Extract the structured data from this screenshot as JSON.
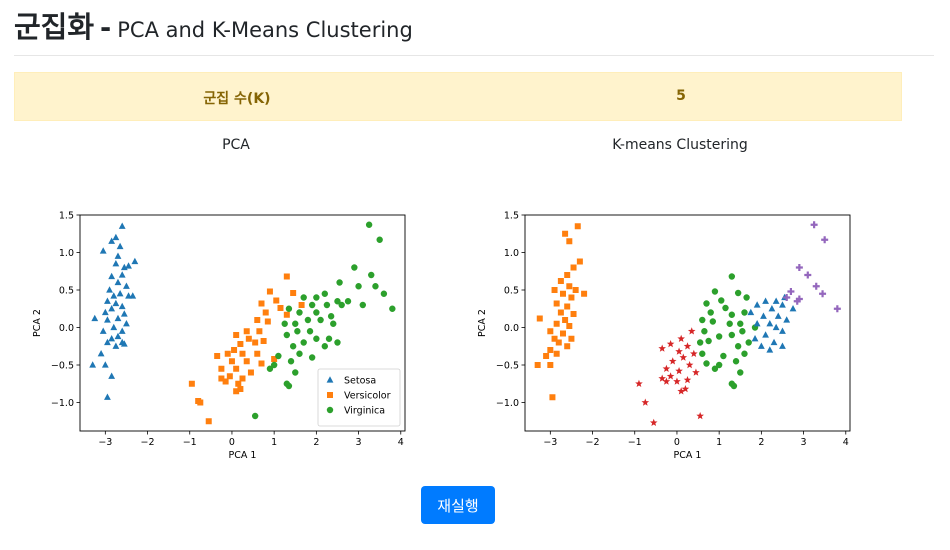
{
  "header": {
    "title_main": "군집화",
    "title_separator": "-",
    "title_sub": "PCA and K-Means Clustering"
  },
  "k_panel": {
    "label": "군집 수(K)",
    "value": "5"
  },
  "plots": {
    "left_title": "PCA",
    "right_title": "K-means Clustering"
  },
  "button": {
    "label": "재실행"
  },
  "chart_data": [
    {
      "type": "scatter",
      "xlabel": "PCA 1",
      "ylabel": "PCA 2",
      "xlim": [
        -3.6,
        4.1
      ],
      "ylim": [
        -1.38,
        1.5
      ],
      "xticks": [
        -3,
        -2,
        -1,
        0,
        1,
        2,
        3,
        4
      ],
      "yticks": [
        -1.0,
        -0.5,
        0.0,
        0.5,
        1.0,
        1.5
      ],
      "legend_position": "lower-right",
      "series": [
        {
          "name": "Setosa",
          "marker": "triangle",
          "color": "#1f77b4",
          "points": [
            [
              -2.6,
              1.35
            ],
            [
              -2.75,
              1.2
            ],
            [
              -2.85,
              1.15
            ],
            [
              -2.65,
              1.08
            ],
            [
              -3.05,
              1.02
            ],
            [
              -2.7,
              0.95
            ],
            [
              -2.3,
              0.88
            ],
            [
              -2.75,
              0.85
            ],
            [
              -2.55,
              0.8
            ],
            [
              -2.45,
              0.82
            ],
            [
              -2.6,
              0.7
            ],
            [
              -2.85,
              0.68
            ],
            [
              -2.7,
              0.6
            ],
            [
              -2.9,
              0.5
            ],
            [
              -2.5,
              0.55
            ],
            [
              -2.65,
              0.45
            ],
            [
              -2.8,
              0.42
            ],
            [
              -2.45,
              0.42
            ],
            [
              -2.35,
              0.42
            ],
            [
              -2.95,
              0.35
            ],
            [
              -2.75,
              0.32
            ],
            [
              -2.6,
              0.28
            ],
            [
              -2.85,
              0.25
            ],
            [
              -3.0,
              0.2
            ],
            [
              -2.55,
              0.18
            ],
            [
              -2.7,
              0.12
            ],
            [
              -2.95,
              0.1
            ],
            [
              -2.5,
              0.05
            ],
            [
              -3.25,
              0.12
            ],
            [
              -2.8,
              0.0
            ],
            [
              -3.05,
              -0.05
            ],
            [
              -2.6,
              -0.05
            ],
            [
              -2.7,
              -0.12
            ],
            [
              -2.85,
              -0.15
            ],
            [
              -2.6,
              -0.2
            ],
            [
              -2.95,
              -0.2
            ],
            [
              -2.75,
              -0.25
            ],
            [
              -2.55,
              -0.22
            ],
            [
              -3.1,
              -0.35
            ],
            [
              -3.0,
              -0.5
            ],
            [
              -3.3,
              -0.5
            ],
            [
              -2.85,
              -0.65
            ],
            [
              -2.95,
              -0.93
            ]
          ]
        },
        {
          "name": "Versicolor",
          "marker": "square",
          "color": "#ff7f0e",
          "points": [
            [
              1.3,
              0.68
            ],
            [
              0.9,
              0.48
            ],
            [
              1.45,
              0.46
            ],
            [
              1.05,
              0.36
            ],
            [
              1.65,
              0.3
            ],
            [
              0.7,
              0.32
            ],
            [
              1.15,
              0.26
            ],
            [
              0.8,
              0.2
            ],
            [
              1.3,
              0.17
            ],
            [
              0.85,
              0.08
            ],
            [
              0.6,
              0.1
            ],
            [
              0.35,
              -0.05
            ],
            [
              0.65,
              -0.05
            ],
            [
              0.1,
              -0.1
            ],
            [
              0.4,
              -0.15
            ],
            [
              0.75,
              -0.18
            ],
            [
              0.2,
              -0.22
            ],
            [
              0.55,
              -0.2
            ],
            [
              0.05,
              -0.3
            ],
            [
              -0.1,
              -0.35
            ],
            [
              0.25,
              -0.35
            ],
            [
              0.6,
              -0.35
            ],
            [
              -0.35,
              -0.38
            ],
            [
              0.0,
              -0.45
            ],
            [
              0.35,
              -0.45
            ],
            [
              0.7,
              -0.48
            ],
            [
              1.0,
              -0.42
            ],
            [
              -0.25,
              -0.55
            ],
            [
              0.1,
              -0.55
            ],
            [
              0.45,
              -0.6
            ],
            [
              -0.05,
              -0.65
            ],
            [
              0.25,
              -0.68
            ],
            [
              -0.25,
              -0.68
            ],
            [
              -0.15,
              -0.72
            ],
            [
              0.15,
              -0.75
            ],
            [
              -0.95,
              -0.75
            ],
            [
              0.2,
              -0.82
            ],
            [
              -0.75,
              -1.0
            ],
            [
              -0.55,
              -1.25
            ],
            [
              0.1,
              -0.85
            ],
            [
              -0.8,
              -0.98
            ]
          ]
        },
        {
          "name": "Virginica",
          "marker": "circle",
          "color": "#2ca02c",
          "points": [
            [
              3.25,
              1.37
            ],
            [
              3.5,
              1.17
            ],
            [
              2.9,
              0.8
            ],
            [
              3.3,
              0.7
            ],
            [
              2.55,
              0.6
            ],
            [
              3.0,
              0.55
            ],
            [
              3.4,
              0.55
            ],
            [
              3.6,
              0.45
            ],
            [
              2.2,
              0.45
            ],
            [
              2.0,
              0.4
            ],
            [
              1.7,
              0.4
            ],
            [
              2.5,
              0.35
            ],
            [
              2.75,
              0.35
            ],
            [
              1.9,
              0.3
            ],
            [
              2.25,
              0.3
            ],
            [
              2.6,
              0.3
            ],
            [
              3.1,
              0.3
            ],
            [
              3.8,
              0.25
            ],
            [
              1.35,
              0.25
            ],
            [
              1.6,
              0.2
            ],
            [
              2.0,
              0.2
            ],
            [
              2.35,
              0.15
            ],
            [
              1.8,
              0.1
            ],
            [
              2.1,
              0.1
            ],
            [
              1.5,
              0.05
            ],
            [
              1.25,
              0.05
            ],
            [
              2.4,
              0.05
            ],
            [
              1.85,
              -0.05
            ],
            [
              1.55,
              -0.05
            ],
            [
              1.3,
              -0.1
            ],
            [
              2.0,
              -0.15
            ],
            [
              2.3,
              -0.15
            ],
            [
              1.7,
              -0.2
            ],
            [
              2.5,
              -0.2
            ],
            [
              1.45,
              -0.25
            ],
            [
              2.2,
              -0.25
            ],
            [
              1.6,
              -0.35
            ],
            [
              1.1,
              -0.38
            ],
            [
              1.9,
              -0.4
            ],
            [
              1.4,
              -0.45
            ],
            [
              1.0,
              -0.5
            ],
            [
              0.9,
              -0.55
            ],
            [
              1.5,
              -0.6
            ],
            [
              1.3,
              -0.75
            ],
            [
              1.35,
              -0.78
            ],
            [
              0.55,
              -1.18
            ]
          ]
        }
      ]
    },
    {
      "type": "scatter",
      "xlabel": "PCA 1",
      "ylabel": "PCA 2",
      "xlim": [
        -3.6,
        4.1
      ],
      "ylim": [
        -1.38,
        1.5
      ],
      "xticks": [
        -3,
        -2,
        -1,
        0,
        1,
        2,
        3,
        4
      ],
      "yticks": [
        -1.0,
        -0.5,
        0.0,
        0.5,
        1.0,
        1.5
      ],
      "series": [
        {
          "marker": "square",
          "color": "#ff7f0e",
          "points": [
            [
              -2.35,
              1.35
            ],
            [
              -2.65,
              1.25
            ],
            [
              -2.55,
              1.15
            ],
            [
              -2.3,
              0.88
            ],
            [
              -2.45,
              0.8
            ],
            [
              -2.6,
              0.7
            ],
            [
              -2.75,
              0.62
            ],
            [
              -2.55,
              0.55
            ],
            [
              -2.4,
              0.5
            ],
            [
              -2.9,
              0.5
            ],
            [
              -2.2,
              0.45
            ],
            [
              -2.7,
              0.45
            ],
            [
              -2.5,
              0.4
            ],
            [
              -2.85,
              0.32
            ],
            [
              -2.6,
              0.28
            ],
            [
              -2.75,
              0.2
            ],
            [
              -2.45,
              0.18
            ],
            [
              -3.25,
              0.12
            ],
            [
              -2.65,
              0.1
            ],
            [
              -2.85,
              0.05
            ],
            [
              -2.55,
              0.02
            ],
            [
              -3.0,
              -0.05
            ],
            [
              -2.7,
              -0.08
            ],
            [
              -2.9,
              -0.15
            ],
            [
              -2.5,
              -0.15
            ],
            [
              -2.8,
              -0.2
            ],
            [
              -2.6,
              -0.25
            ],
            [
              -3.0,
              -0.3
            ],
            [
              -2.85,
              -0.35
            ],
            [
              -3.1,
              -0.38
            ],
            [
              -3.3,
              -0.5
            ],
            [
              -3.0,
              -0.5
            ],
            [
              -2.95,
              -0.93
            ]
          ]
        },
        {
          "marker": "star",
          "color": "#d62728",
          "points": [
            [
              0.35,
              -0.05
            ],
            [
              0.1,
              -0.15
            ],
            [
              -0.15,
              -0.22
            ],
            [
              0.25,
              -0.25
            ],
            [
              -0.35,
              -0.28
            ],
            [
              0.05,
              -0.32
            ],
            [
              0.4,
              -0.35
            ],
            [
              0.15,
              -0.4
            ],
            [
              -0.1,
              -0.45
            ],
            [
              0.3,
              -0.5
            ],
            [
              -0.25,
              -0.55
            ],
            [
              0.05,
              -0.58
            ],
            [
              0.45,
              -0.6
            ],
            [
              -0.15,
              -0.65
            ],
            [
              -0.35,
              -0.68
            ],
            [
              0.25,
              -0.7
            ],
            [
              0.0,
              -0.72
            ],
            [
              -0.25,
              -0.72
            ],
            [
              -0.9,
              -0.75
            ],
            [
              0.2,
              -0.82
            ],
            [
              -0.75,
              -1.0
            ],
            [
              -0.55,
              -1.27
            ],
            [
              0.55,
              -1.18
            ],
            [
              0.1,
              -0.85
            ]
          ]
        },
        {
          "marker": "circle",
          "color": "#2ca02c",
          "points": [
            [
              1.3,
              0.68
            ],
            [
              0.9,
              0.48
            ],
            [
              1.45,
              0.46
            ],
            [
              1.65,
              0.4
            ],
            [
              1.05,
              0.36
            ],
            [
              0.7,
              0.32
            ],
            [
              1.15,
              0.26
            ],
            [
              0.8,
              0.2
            ],
            [
              1.3,
              0.17
            ],
            [
              1.6,
              0.2
            ],
            [
              0.85,
              0.08
            ],
            [
              0.6,
              0.1
            ],
            [
              1.25,
              0.05
            ],
            [
              1.5,
              0.05
            ],
            [
              1.85,
              0.0
            ],
            [
              1.55,
              -0.05
            ],
            [
              0.65,
              -0.05
            ],
            [
              1.3,
              -0.1
            ],
            [
              1.0,
              -0.12
            ],
            [
              0.75,
              -0.18
            ],
            [
              1.7,
              -0.2
            ],
            [
              0.55,
              -0.2
            ],
            [
              1.45,
              -0.25
            ],
            [
              1.6,
              -0.35
            ],
            [
              1.1,
              -0.38
            ],
            [
              0.6,
              -0.35
            ],
            [
              1.4,
              -0.45
            ],
            [
              1.0,
              -0.5
            ],
            [
              0.7,
              -0.48
            ],
            [
              0.9,
              -0.55
            ],
            [
              1.5,
              -0.6
            ],
            [
              1.3,
              -0.75
            ],
            [
              1.35,
              -0.78
            ]
          ]
        },
        {
          "marker": "triangle",
          "color": "#1f77b4",
          "points": [
            [
              2.55,
              0.4
            ],
            [
              2.35,
              0.35
            ],
            [
              2.1,
              0.35
            ],
            [
              1.9,
              0.3
            ],
            [
              2.5,
              0.3
            ],
            [
              2.25,
              0.25
            ],
            [
              2.75,
              0.25
            ],
            [
              1.75,
              0.2
            ],
            [
              2.05,
              0.15
            ],
            [
              2.4,
              0.15
            ],
            [
              2.6,
              0.1
            ],
            [
              2.2,
              0.05
            ],
            [
              1.9,
              0.05
            ],
            [
              2.35,
              0.0
            ],
            [
              2.5,
              -0.05
            ],
            [
              2.1,
              -0.1
            ],
            [
              1.85,
              -0.15
            ],
            [
              2.3,
              -0.2
            ],
            [
              2.5,
              -0.25
            ],
            [
              2.0,
              -0.25
            ],
            [
              2.2,
              -0.3
            ]
          ]
        },
        {
          "marker": "plus",
          "color": "#9467bd",
          "points": [
            [
              3.25,
              1.37
            ],
            [
              3.5,
              1.17
            ],
            [
              2.9,
              0.8
            ],
            [
              3.1,
              0.7
            ],
            [
              2.7,
              0.48
            ],
            [
              3.3,
              0.55
            ],
            [
              3.45,
              0.45
            ],
            [
              2.6,
              0.4
            ],
            [
              2.9,
              0.38
            ],
            [
              2.85,
              0.35
            ],
            [
              3.8,
              0.25
            ]
          ]
        }
      ]
    }
  ]
}
